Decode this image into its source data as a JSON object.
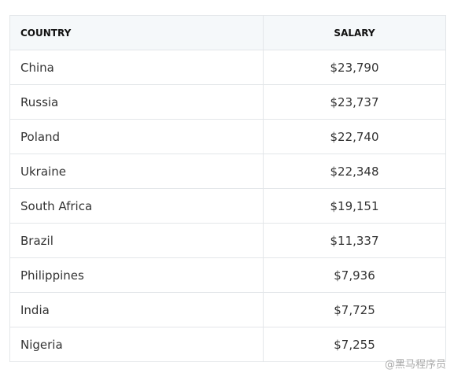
{
  "table": {
    "header": [
      "COUNTRY",
      "SALARY"
    ],
    "rows": [
      [
        "China",
        "$23,790"
      ],
      [
        "Russia",
        "$23,737"
      ],
      [
        "Poland",
        "$22,740"
      ],
      [
        "Ukraine",
        "$22,348"
      ],
      [
        "South Africa",
        "$19,151"
      ],
      [
        "Brazil",
        "$11,337"
      ],
      [
        "Philippines",
        "$7,936"
      ],
      [
        "India",
        "$7,725"
      ],
      [
        "Nigeria",
        "$7,255"
      ]
    ]
  },
  "watermark": "@黑马程序员"
}
